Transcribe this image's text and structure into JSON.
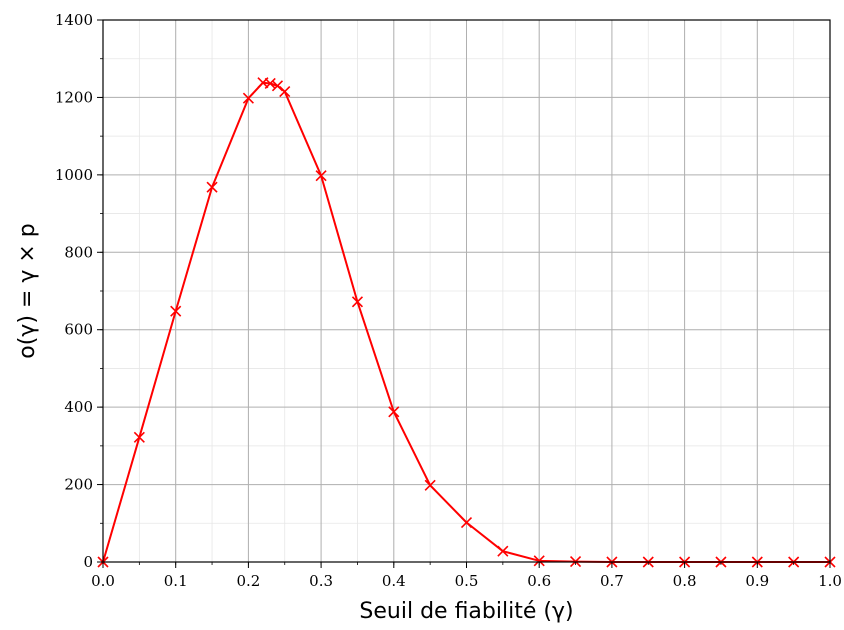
{
  "chart_data": {
    "type": "line",
    "title": "",
    "xlabel": "Seuil de fiabilité (γ)",
    "ylabel": "o(γ) = γ × p",
    "xlim": [
      0.0,
      1.0
    ],
    "ylim": [
      0,
      1400
    ],
    "x_ticks": [
      "0.0",
      "0.1",
      "0.2",
      "0.3",
      "0.4",
      "0.5",
      "0.6",
      "0.7",
      "0.8",
      "0.9",
      "1.0"
    ],
    "y_ticks": [
      "0",
      "200",
      "400",
      "600",
      "800",
      "1000",
      "1200",
      "1400"
    ],
    "x_tick_values": [
      0.0,
      0.1,
      0.2,
      0.3,
      0.4,
      0.5,
      0.6,
      0.7,
      0.8,
      0.9,
      1.0
    ],
    "y_tick_values": [
      0,
      200,
      400,
      600,
      800,
      1000,
      1200,
      1400
    ],
    "x_minor_step": 0.05,
    "y_minor_step": 100,
    "grid": true,
    "legend": "none",
    "series": [
      {
        "color": "#ff0000",
        "marker": "x",
        "x": [
          0.0,
          0.05,
          0.1,
          0.15,
          0.2,
          0.22,
          0.23,
          0.24,
          0.25,
          0.3,
          0.35,
          0.4,
          0.45,
          0.5,
          0.55,
          0.6,
          0.65,
          0.7,
          0.75,
          0.8,
          0.85,
          0.9,
          0.95,
          1.0
        ],
        "values": [
          0,
          322,
          648,
          968,
          1198,
          1238,
          1236,
          1230,
          1215,
          998,
          672,
          388,
          198,
          102,
          28,
          3,
          1,
          0,
          0,
          0,
          0,
          0,
          0,
          0
        ]
      }
    ]
  }
}
